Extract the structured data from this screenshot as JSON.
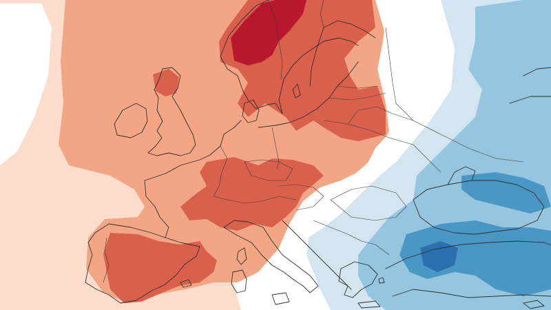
{
  "map": {
    "type": "temperature anomaly choropleth",
    "region": "Europe",
    "labels": [],
    "legend": null,
    "colors": {
      "anomaly_plus_extreme": "#b7182d",
      "anomaly_plus_high": "#d9604b",
      "anomaly_plus_mid": "#f2a686",
      "anomaly_plus_low": "#fcdccb",
      "neutral": "#ffffff",
      "anomaly_minus_low": "#d2e5f0",
      "anomaly_minus_mid": "#95c5df",
      "anomaly_minus_high": "#4a97c6",
      "anomaly_minus_extreme": "#2b70ae",
      "boundary_lines": "#2e2e2e"
    }
  }
}
